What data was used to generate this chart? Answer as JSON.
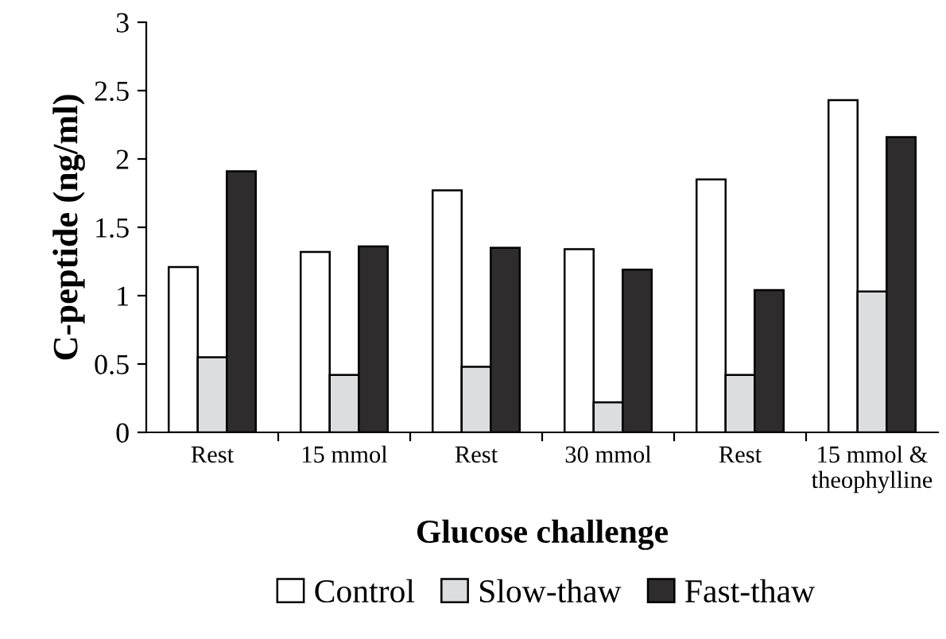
{
  "chart_data": {
    "type": "bar",
    "xlabel": "Glucose challenge",
    "ylabel": "C-peptide (ng/ml)",
    "categories": [
      "Rest",
      "15 mmol",
      "Rest",
      "30 mmol",
      "Rest",
      "15 mmol &\ntheophylline"
    ],
    "series": [
      {
        "name": "Control",
        "color": "#ffffff",
        "values": [
          1.21,
          1.32,
          1.77,
          1.34,
          1.85,
          2.43
        ]
      },
      {
        "name": "Slow-thaw",
        "color": "#dcdddf",
        "values": [
          0.55,
          0.42,
          0.48,
          0.22,
          0.42,
          1.03
        ]
      },
      {
        "name": "Fast-thaw",
        "color": "#2e2c2d",
        "values": [
          1.91,
          1.36,
          1.35,
          1.19,
          1.04,
          2.16
        ]
      }
    ],
    "ylim": [
      0,
      3
    ],
    "yticks": [
      0,
      0.5,
      1,
      1.5,
      2,
      2.5,
      3
    ],
    "grid": false,
    "legend": "bottom"
  }
}
